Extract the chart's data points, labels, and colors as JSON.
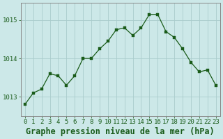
{
  "x": [
    0,
    1,
    2,
    3,
    4,
    5,
    6,
    7,
    8,
    9,
    10,
    11,
    12,
    13,
    14,
    15,
    16,
    17,
    18,
    19,
    20,
    21,
    22,
    23
  ],
  "y": [
    1012.8,
    1013.1,
    1013.2,
    1013.6,
    1013.55,
    1013.3,
    1013.55,
    1014.0,
    1014.0,
    1014.25,
    1014.45,
    1014.75,
    1014.8,
    1014.6,
    1014.8,
    1015.15,
    1015.15,
    1014.7,
    1014.55,
    1014.25,
    1013.9,
    1013.65,
    1013.7,
    1013.3
  ],
  "line_color": "#1a5c1a",
  "marker_color": "#1a5c1a",
  "bg_color": "#cce8e8",
  "grid_color": "#aacccc",
  "title": "Graphe pression niveau de la mer (hPa)",
  "ylabel_ticks": [
    1013,
    1014,
    1015
  ],
  "xlim": [
    -0.5,
    23.5
  ],
  "ylim": [
    1012.5,
    1015.45
  ],
  "tick_fontsize": 6.5,
  "title_fontsize": 8.5,
  "border_color": "#888888"
}
